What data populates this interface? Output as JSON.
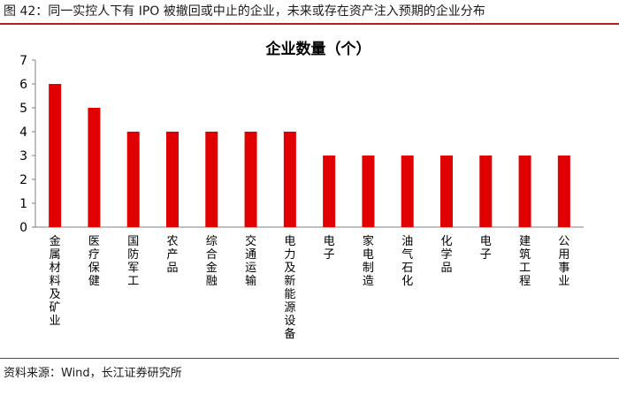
{
  "figure": {
    "caption": "图 42：同一实控人下有 IPO 被撤回或中止的企业，未来或存在资产注入预期的企业分布",
    "source": "资料来源：Wind，长江证券研究所"
  },
  "colors": {
    "bar": "#e00000",
    "axis": "#7f7f7f",
    "header_line": "#b71c1c"
  },
  "chart_data": {
    "type": "bar",
    "title": "企业数量（个）",
    "xlabel": "",
    "ylabel": "",
    "ylim": [
      0,
      7
    ],
    "yticks": [
      0,
      1,
      2,
      3,
      4,
      5,
      6,
      7
    ],
    "grid": false,
    "categories": [
      "金属材料及矿业",
      "医疗保健",
      "国防军工",
      "农产品",
      "综合金融",
      "交通运输",
      "电力及新能源设备",
      "电子",
      "家电制造",
      "油气石化",
      "化学品",
      "电子",
      "建筑工程",
      "公用事业"
    ],
    "values": [
      6,
      5,
      4,
      4,
      4,
      4,
      4,
      3,
      3,
      3,
      3,
      3,
      3,
      3
    ]
  }
}
